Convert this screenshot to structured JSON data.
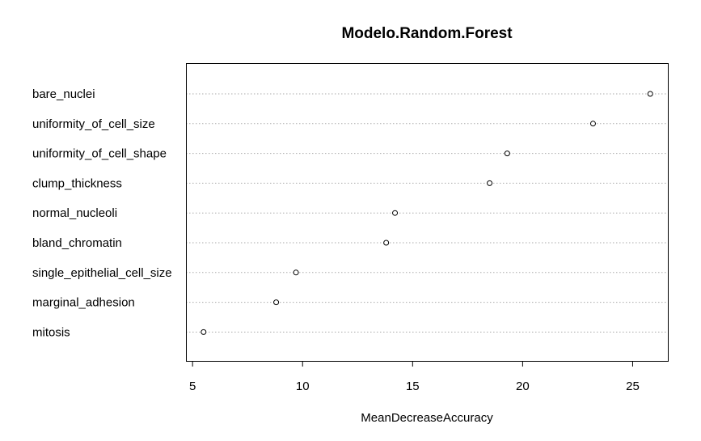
{
  "chart_data": {
    "type": "scatter",
    "title": "Modelo.Random.Forest",
    "xlabel": "MeanDecreaseAccuracy",
    "ylabel": "",
    "xlim": [
      4.7,
      26.6
    ],
    "xticks": [
      5,
      10,
      15,
      20,
      25
    ],
    "grid": "dotted horizontal",
    "categories": [
      "bare_nuclei",
      "uniformity_of_cell_size",
      "uniformity_of_cell_shape",
      "clump_thickness",
      "normal_nucleoli",
      "bland_chromatin",
      "single_epithelial_cell_size",
      "marginal_adhesion",
      "mitosis"
    ],
    "values": [
      25.8,
      23.2,
      19.3,
      18.5,
      14.2,
      13.8,
      9.7,
      8.8,
      5.5
    ]
  }
}
